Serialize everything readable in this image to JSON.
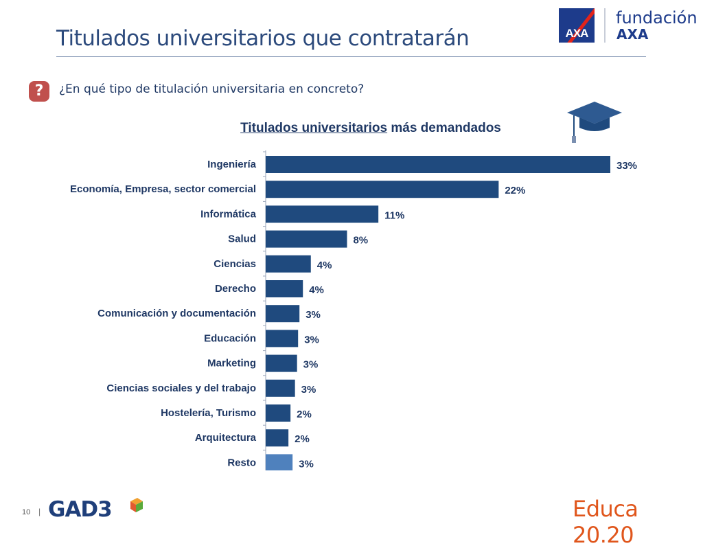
{
  "header": {
    "title": "Titulados universitarios que contratarán",
    "brand_word": "fundación",
    "brand_sub": "AXA",
    "axa_logo_text": "AXA"
  },
  "question": {
    "icon": "question-mark-icon",
    "mark": "?",
    "text": "¿En qué tipo de titulación universitaria en concreto?"
  },
  "chart_title": {
    "underlined": "Titulados universitarios",
    "rest": " más demandados"
  },
  "chart_data": {
    "type": "bar",
    "orientation": "horizontal",
    "title": "Titulados universitarios más demandados",
    "categories": [
      "Ingeniería",
      "Economía, Empresa, sector comercial",
      "Informática",
      "Salud",
      "Ciencias",
      "Derecho",
      "Comunicación y documentación",
      "Educación",
      "Marketing",
      "Ciencias sociales y del trabajo",
      "Hostelería, Turismo",
      "Arquitectura",
      "Resto"
    ],
    "values": [
      33,
      22,
      11,
      8,
      4,
      4,
      3,
      3,
      3,
      3,
      2,
      2,
      3
    ],
    "value_labels": [
      "33%",
      "22%",
      "11%",
      "8%",
      "4%",
      "4%",
      "3%",
      "3%",
      "3%",
      "3%",
      "2%",
      "2%",
      "3%"
    ],
    "bar_widths_ratio": [
      1.0,
      0.676,
      0.327,
      0.236,
      0.131,
      0.108,
      0.098,
      0.094,
      0.091,
      0.085,
      0.072,
      0.066,
      0.078
    ],
    "colors": {
      "bar": "#1f4a7e",
      "last_bar": "#4f81bd",
      "label": "#1f3864"
    },
    "xlabel": "",
    "ylabel": "",
    "grid": false,
    "legend": "none"
  },
  "footer": {
    "page": "10",
    "separator": "|",
    "logo_left": "GAD3",
    "logo_right": "Educa 20.20"
  }
}
